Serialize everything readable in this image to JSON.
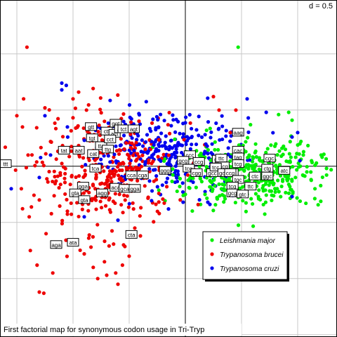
{
  "chart_data": {
    "type": "scatter",
    "title": "First factorial map for synonymous codon usage in Tri-Tryp",
    "scale_label": "d = 0.5",
    "grid": true,
    "legend_position": "bottom-right",
    "grid_step": 0.5,
    "xlim": [
      -1.65,
      1.35
    ],
    "ylim": [
      -1.52,
      1.48
    ],
    "axes_origin": [
      0,
      0
    ],
    "series": [
      {
        "name": "Leishmania major",
        "color": "#00ee00",
        "center": [
          0.58,
          -0.06
        ],
        "spread": [
          0.32,
          0.14
        ],
        "points": [
          [
            0.47,
            1.06
          ],
          [
            0.83,
            0.46
          ],
          [
            0.92,
            0.48
          ],
          [
            0.95,
            0.41
          ],
          [
            0.58,
            0.37
          ],
          [
            0.86,
            0.16
          ],
          [
            0.94,
            0.08
          ],
          [
            0.3,
            -0.16
          ],
          [
            0.4,
            -0.2
          ],
          [
            0.55,
            -0.25
          ],
          [
            0.65,
            -0.27
          ],
          [
            0.75,
            -0.22
          ],
          [
            1.02,
            0.2
          ],
          [
            1.05,
            0.1
          ],
          [
            0.98,
            -0.1
          ],
          [
            -0.05,
            -0.18
          ],
          [
            0.0,
            -0.25
          ]
        ]
      },
      {
        "name": "Trypanosoma brucei",
        "color": "#ee0000",
        "center": [
          -0.7,
          -0.05
        ],
        "spread": [
          0.3,
          0.25
        ],
        "points": [
          [
            -1.41,
            1.06
          ],
          [
            -1.39,
            -0.45
          ],
          [
            -1.38,
            -0.75
          ],
          [
            -1.32,
            -0.88
          ],
          [
            -1.3,
            -1.12
          ],
          [
            -1.26,
            -1.13
          ],
          [
            -1.18,
            -0.95
          ],
          [
            -1.24,
            -0.6
          ],
          [
            -1.5,
            0.45
          ],
          [
            -1.45,
            0.35
          ],
          [
            -1.44,
            0.6
          ],
          [
            -1.46,
            -0.2
          ],
          [
            -1.4,
            0.1
          ],
          [
            -1.2,
            0.22
          ],
          [
            -0.9,
            -0.78
          ],
          [
            -0.86,
            -0.64
          ],
          [
            -0.84,
            -0.72
          ],
          [
            -0.82,
            -0.9
          ],
          [
            -0.72,
            -0.85
          ],
          [
            -0.7,
            -0.97
          ],
          [
            -0.55,
            -0.7
          ],
          [
            -0.5,
            -0.8
          ],
          [
            -0.56,
            -0.88
          ],
          [
            -0.45,
            -0.55
          ],
          [
            -0.4,
            -0.62
          ],
          [
            -0.6,
            -1.05
          ],
          [
            -0.62,
            -0.95
          ],
          [
            -0.78,
            -1.0
          ],
          [
            -1.05,
            -0.4
          ],
          [
            -1.3,
            -0.3
          ],
          [
            -1.0,
            0.6
          ],
          [
            -0.95,
            0.66
          ],
          [
            -0.88,
            0.5
          ],
          [
            -1.25,
            0.52
          ],
          [
            -0.72,
            0.4
          ],
          [
            0.25,
            0.62
          ],
          [
            0.3,
            0.5
          ],
          [
            0.45,
            0.5
          ],
          [
            0.4,
            0.3
          ]
        ]
      },
      {
        "name": "Trypanosoma cruzi",
        "color": "#0000ee",
        "center": [
          -0.15,
          0.1
        ],
        "spread": [
          0.35,
          0.17
        ],
        "points": [
          [
            -1.1,
            0.74
          ],
          [
            -1.06,
            0.72
          ],
          [
            -1.1,
            0.68
          ],
          [
            -1.25,
            0.45
          ],
          [
            -1.55,
            -0.2
          ],
          [
            -0.9,
            -0.45
          ],
          [
            -0.6,
            -0.48
          ],
          [
            0.2,
            -0.32
          ],
          [
            -0.02,
            -0.32
          ],
          [
            -0.15,
            -0.38
          ],
          [
            0.55,
            0.6
          ],
          [
            0.72,
            0.48
          ],
          [
            0.95,
            0.26
          ],
          [
            1.0,
            0.3
          ],
          [
            1.02,
            0.05
          ],
          [
            0.95,
            -0.27
          ],
          [
            -1.05,
            0.35
          ],
          [
            -1.2,
            0.1
          ],
          [
            -1.3,
            -0.1
          ]
        ]
      }
    ],
    "codon_labels": [
      {
        "text": "ttt",
        "x": -1.6,
        "y": 0.02
      },
      {
        "text": "tat",
        "x": -1.08,
        "y": 0.14
      },
      {
        "text": "aat",
        "x": -0.95,
        "y": 0.14
      },
      {
        "text": "gtt",
        "x": -0.84,
        "y": 0.35
      },
      {
        "text": "tgt",
        "x": -0.83,
        "y": 0.25
      },
      {
        "text": "cat",
        "x": -0.82,
        "y": 0.11
      },
      {
        "text": "tta",
        "x": -0.75,
        "y": 0.18
      },
      {
        "text": "ttg",
        "x": -0.69,
        "y": 0.15
      },
      {
        "text": "ctt",
        "x": -0.7,
        "y": 0.31
      },
      {
        "text": "ggt",
        "x": -0.62,
        "y": 0.38
      },
      {
        "text": "act",
        "x": -0.63,
        "y": 0.29
      },
      {
        "text": "cct",
        "x": -0.67,
        "y": 0.24
      },
      {
        "text": "att",
        "x": -0.58,
        "y": 0.33
      },
      {
        "text": "tct",
        "x": -0.55,
        "y": 0.33
      },
      {
        "text": "agt",
        "x": -0.46,
        "y": 0.33
      },
      {
        "text": "tca",
        "x": -0.8,
        "y": -0.02
      },
      {
        "text": "cca",
        "x": -0.48,
        "y": -0.08
      },
      {
        "text": "cga",
        "x": -0.38,
        "y": -0.08
      },
      {
        "text": "ggg",
        "x": -0.18,
        "y": -0.04
      },
      {
        "text": "gga",
        "x": -0.91,
        "y": -0.18
      },
      {
        "text": "aca",
        "x": -0.62,
        "y": -0.19
      },
      {
        "text": "gca",
        "x": -0.54,
        "y": -0.2
      },
      {
        "text": "gga",
        "x": -0.45,
        "y": -0.2
      },
      {
        "text": "agg",
        "x": -0.74,
        "y": -0.24
      },
      {
        "text": "gta",
        "x": -0.98,
        "y": -0.24
      },
      {
        "text": "gta",
        "x": -0.9,
        "y": -0.3
      },
      {
        "text": "cta",
        "x": -0.48,
        "y": -0.61
      },
      {
        "text": "ata",
        "x": -1.0,
        "y": -0.68
      },
      {
        "text": "aga",
        "x": -1.15,
        "y": -0.7
      },
      {
        "text": "ccc",
        "x": 0.04,
        "y": 0.1
      },
      {
        "text": "gcg",
        "x": -0.02,
        "y": 0.05
      },
      {
        "text": "ccg",
        "x": 0.12,
        "y": 0.04
      },
      {
        "text": "tcg",
        "x": 0.03,
        "y": -0.02
      },
      {
        "text": "cgg",
        "x": 0.1,
        "y": -0.06
      },
      {
        "text": "gcc",
        "x": 0.24,
        "y": -0.06
      },
      {
        "text": "gtc",
        "x": 0.29,
        "y": 0.06
      },
      {
        "text": "ttc",
        "x": 0.32,
        "y": 0.07
      },
      {
        "text": "acg",
        "x": 0.34,
        "y": 0.0
      },
      {
        "text": "tcc",
        "x": 0.27,
        "y": -0.01
      },
      {
        "text": "gcg",
        "x": 0.34,
        "y": -0.06
      },
      {
        "text": "tac",
        "x": 0.42,
        "y": -0.06
      },
      {
        "text": "cac",
        "x": 0.47,
        "y": 0.14
      },
      {
        "text": "tag",
        "x": 0.47,
        "y": 0.08
      },
      {
        "text": "tcg",
        "x": 0.47,
        "y": 0.02
      },
      {
        "text": "ccg",
        "x": 0.4,
        "y": -0.06
      },
      {
        "text": "aag",
        "x": 0.47,
        "y": 0.3
      },
      {
        "text": "tgc",
        "x": 0.47,
        "y": -0.12
      },
      {
        "text": "tcg",
        "x": 0.42,
        "y": -0.18
      },
      {
        "text": "gcg",
        "x": 0.42,
        "y": -0.24
      },
      {
        "text": "gtc",
        "x": 0.51,
        "y": -0.25
      },
      {
        "text": "ttc",
        "x": 0.58,
        "y": -0.18
      },
      {
        "text": "ctc",
        "x": 0.62,
        "y": -0.09
      },
      {
        "text": "ggc",
        "x": 0.73,
        "y": -0.09
      },
      {
        "text": "cgc",
        "x": 0.75,
        "y": 0.07
      },
      {
        "text": "ctg",
        "x": 0.73,
        "y": -0.02
      },
      {
        "text": "atc",
        "x": 0.88,
        "y": -0.04
      }
    ]
  }
}
